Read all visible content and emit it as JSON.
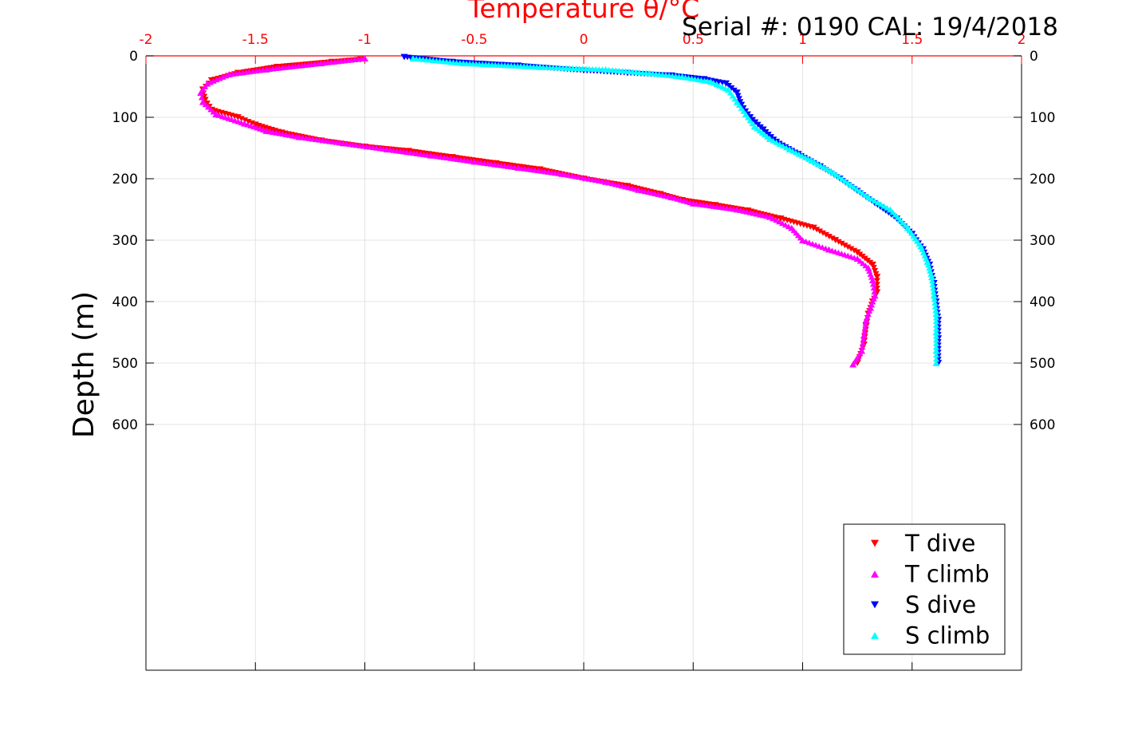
{
  "chart_data": {
    "type": "scatter",
    "title": "Temperature θ/°C",
    "subtitle": "Serial #: 0190  CAL: 19/4/2018",
    "xlabel": "Temperature θ/°C",
    "ylabel": "Depth (m)",
    "xlim": [
      -2,
      2
    ],
    "ylim": [
      0,
      1000
    ],
    "y_reversed": true,
    "x_axis_location": "top",
    "x_ticks": [
      "-2",
      "-1.5",
      "-1",
      "-0.5",
      "0",
      "0.5",
      "1",
      "1.5",
      "2"
    ],
    "y_ticks": [
      "0",
      "100",
      "200",
      "300",
      "400",
      "500",
      "600"
    ],
    "grid": true,
    "legend_position": "bottom-right",
    "series": [
      {
        "name": "T dive",
        "marker": "triangle-down",
        "color": "#ff0000",
        "points": [
          [
            -1.02,
            6
          ],
          [
            -1.15,
            10
          ],
          [
            -1.4,
            18
          ],
          [
            -1.58,
            28
          ],
          [
            -1.7,
            40
          ],
          [
            -1.74,
            55
          ],
          [
            -1.73,
            72
          ],
          [
            -1.7,
            88
          ],
          [
            -1.58,
            100
          ],
          [
            -1.5,
            112
          ],
          [
            -1.38,
            125
          ],
          [
            -1.2,
            138
          ],
          [
            -1.0,
            148
          ],
          [
            -0.8,
            155
          ],
          [
            -0.6,
            165
          ],
          [
            -0.4,
            175
          ],
          [
            -0.2,
            185
          ],
          [
            0.0,
            200
          ],
          [
            0.2,
            212
          ],
          [
            0.35,
            225
          ],
          [
            0.45,
            235
          ],
          [
            0.6,
            243
          ],
          [
            0.75,
            252
          ],
          [
            0.9,
            265
          ],
          [
            1.05,
            280
          ],
          [
            1.15,
            300
          ],
          [
            1.25,
            320
          ],
          [
            1.32,
            340
          ],
          [
            1.34,
            360
          ],
          [
            1.34,
            385
          ],
          [
            1.32,
            400
          ],
          [
            1.3,
            420
          ],
          [
            1.29,
            440
          ],
          [
            1.28,
            470
          ],
          [
            1.25,
            500
          ]
        ]
      },
      {
        "name": "T climb",
        "marker": "triangle-up",
        "color": "#ff00ff",
        "points": [
          [
            -1.0,
            4
          ],
          [
            -1.2,
            12
          ],
          [
            -1.45,
            22
          ],
          [
            -1.62,
            30
          ],
          [
            -1.72,
            45
          ],
          [
            -1.75,
            60
          ],
          [
            -1.74,
            75
          ],
          [
            -1.68,
            95
          ],
          [
            -1.55,
            110
          ],
          [
            -1.45,
            122
          ],
          [
            -1.3,
            132
          ],
          [
            -1.1,
            142
          ],
          [
            -0.9,
            152
          ],
          [
            -0.7,
            162
          ],
          [
            -0.5,
            172
          ],
          [
            -0.3,
            182
          ],
          [
            -0.1,
            192
          ],
          [
            0.1,
            205
          ],
          [
            0.25,
            218
          ],
          [
            0.4,
            230
          ],
          [
            0.5,
            240
          ],
          [
            0.7,
            250
          ],
          [
            0.85,
            262
          ],
          [
            0.95,
            280
          ],
          [
            1.0,
            300
          ],
          [
            1.12,
            315
          ],
          [
            1.25,
            330
          ],
          [
            1.3,
            345
          ],
          [
            1.32,
            365
          ],
          [
            1.33,
            390
          ],
          [
            1.31,
            410
          ],
          [
            1.29,
            430
          ],
          [
            1.28,
            455
          ],
          [
            1.27,
            480
          ],
          [
            1.23,
            502
          ]
        ]
      },
      {
        "name": "S dive",
        "marker": "triangle-down",
        "color": "#0000ff",
        "points": [
          [
            -0.82,
            2
          ],
          [
            -0.6,
            10
          ],
          [
            -0.3,
            16
          ],
          [
            0.0,
            24
          ],
          [
            0.2,
            28
          ],
          [
            0.4,
            32
          ],
          [
            0.55,
            38
          ],
          [
            0.65,
            45
          ],
          [
            0.7,
            60
          ],
          [
            0.72,
            80
          ],
          [
            0.76,
            100
          ],
          [
            0.82,
            120
          ],
          [
            0.88,
            140
          ],
          [
            0.98,
            160
          ],
          [
            1.08,
            180
          ],
          [
            1.17,
            200
          ],
          [
            1.25,
            220
          ],
          [
            1.33,
            240
          ],
          [
            1.43,
            265
          ],
          [
            1.5,
            290
          ],
          [
            1.55,
            315
          ],
          [
            1.58,
            340
          ],
          [
            1.6,
            370
          ],
          [
            1.61,
            400
          ],
          [
            1.62,
            430
          ],
          [
            1.62,
            460
          ],
          [
            1.62,
            500
          ]
        ]
      },
      {
        "name": "S climb",
        "marker": "triangle-up",
        "color": "#00ffff",
        "points": [
          [
            -0.78,
            4
          ],
          [
            -0.55,
            12
          ],
          [
            -0.2,
            18
          ],
          [
            0.1,
            22
          ],
          [
            0.3,
            28
          ],
          [
            0.45,
            34
          ],
          [
            0.58,
            42
          ],
          [
            0.66,
            55
          ],
          [
            0.7,
            75
          ],
          [
            0.74,
            95
          ],
          [
            0.78,
            115
          ],
          [
            0.85,
            135
          ],
          [
            0.94,
            152
          ],
          [
            1.04,
            170
          ],
          [
            1.14,
            190
          ],
          [
            1.22,
            210
          ],
          [
            1.3,
            230
          ],
          [
            1.4,
            250
          ],
          [
            1.48,
            280
          ],
          [
            1.54,
            310
          ],
          [
            1.57,
            335
          ],
          [
            1.59,
            360
          ],
          [
            1.6,
            390
          ],
          [
            1.61,
            420
          ],
          [
            1.61,
            450
          ],
          [
            1.61,
            480
          ],
          [
            1.61,
            500
          ]
        ]
      }
    ]
  }
}
